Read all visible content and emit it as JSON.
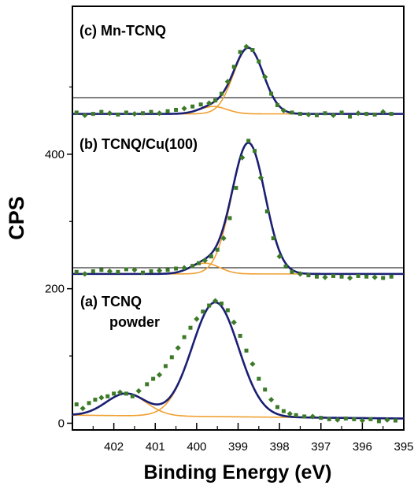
{
  "chart_data": {
    "type": "scatter",
    "xlabel": "Binding Energy (eV)",
    "ylabel": "CPS",
    "xlim": [
      403,
      395
    ],
    "ylim": [
      -10,
      620
    ],
    "x_reversed": true,
    "x_ticks": [
      "402",
      "401",
      "400",
      "399",
      "398",
      "397",
      "396",
      "395"
    ],
    "y_ticks": [
      "0",
      "200",
      "400"
    ],
    "colors": {
      "data": "#3c7a28",
      "fit": "#1a1f73",
      "component": "#f0a030",
      "axis": "#000000"
    },
    "panels": [
      {
        "label": "(a) TCNQ",
        "label_line2": "powder",
        "baseline": [
          12,
          7
        ],
        "peaks": [
          {
            "center": 399.55,
            "height": 170,
            "width": 0.56
          },
          {
            "center": 401.7,
            "height": 33,
            "width": 0.48
          }
        ],
        "points": [
          [
            402.9,
            28
          ],
          [
            402.75,
            22
          ],
          [
            402.6,
            30
          ],
          [
            402.45,
            35
          ],
          [
            402.3,
            38
          ],
          [
            402.15,
            40
          ],
          [
            402.0,
            44
          ],
          [
            401.85,
            46
          ],
          [
            401.7,
            44
          ],
          [
            401.55,
            40
          ],
          [
            401.4,
            48
          ],
          [
            401.2,
            58
          ],
          [
            401.05,
            66
          ],
          [
            400.9,
            72
          ],
          [
            400.75,
            85
          ],
          [
            400.6,
            98
          ],
          [
            400.45,
            112
          ],
          [
            400.3,
            128
          ],
          [
            400.15,
            142
          ],
          [
            400.0,
            155
          ],
          [
            399.85,
            166
          ],
          [
            399.7,
            175
          ],
          [
            399.55,
            182
          ],
          [
            399.4,
            178
          ],
          [
            399.25,
            168
          ],
          [
            399.1,
            150
          ],
          [
            398.95,
            130
          ],
          [
            398.8,
            108
          ],
          [
            398.65,
            88
          ],
          [
            398.5,
            66
          ],
          [
            398.35,
            50
          ],
          [
            398.2,
            35
          ],
          [
            398.05,
            24
          ],
          [
            397.9,
            18
          ],
          [
            397.75,
            14
          ],
          [
            397.6,
            12
          ],
          [
            397.4,
            10
          ],
          [
            397.2,
            10
          ],
          [
            397.0,
            8
          ],
          [
            396.8,
            6
          ],
          [
            396.6,
            5
          ],
          [
            396.4,
            7
          ],
          [
            396.2,
            6
          ],
          [
            396.0,
            4
          ],
          [
            395.8,
            6
          ],
          [
            395.6,
            3
          ],
          [
            395.4,
            5
          ],
          [
            395.2,
            4
          ]
        ]
      },
      {
        "label": "(b) TCNQ/Cu(100)",
        "baseline": [
          222,
          222
        ],
        "peaks": [
          {
            "center": 398.75,
            "height": 195,
            "width": 0.4
          },
          {
            "center": 399.8,
            "height": 16,
            "width": 0.35
          }
        ],
        "points": [
          [
            402.9,
            225
          ],
          [
            402.7,
            222
          ],
          [
            402.5,
            226
          ],
          [
            402.3,
            228
          ],
          [
            402.1,
            226
          ],
          [
            401.9,
            225
          ],
          [
            401.7,
            229
          ],
          [
            401.5,
            228
          ],
          [
            401.3,
            224
          ],
          [
            401.1,
            226
          ],
          [
            400.9,
            227
          ],
          [
            400.7,
            228
          ],
          [
            400.5,
            230
          ],
          [
            400.3,
            231
          ],
          [
            400.1,
            234
          ],
          [
            399.95,
            238
          ],
          [
            399.8,
            242
          ],
          [
            399.65,
            248
          ],
          [
            399.5,
            258
          ],
          [
            399.35,
            275
          ],
          [
            399.2,
            305
          ],
          [
            399.05,
            350
          ],
          [
            398.9,
            395
          ],
          [
            398.75,
            420
          ],
          [
            398.6,
            405
          ],
          [
            398.45,
            365
          ],
          [
            398.3,
            315
          ],
          [
            398.15,
            275
          ],
          [
            398.0,
            248
          ],
          [
            397.85,
            233
          ],
          [
            397.7,
            225
          ],
          [
            397.5,
            222
          ],
          [
            397.3,
            220
          ],
          [
            397.1,
            218
          ],
          [
            396.9,
            217
          ],
          [
            396.7,
            219
          ],
          [
            396.5,
            218
          ],
          [
            396.3,
            216
          ],
          [
            396.1,
            219
          ],
          [
            395.9,
            218
          ],
          [
            395.7,
            217
          ],
          [
            395.5,
            216
          ],
          [
            395.3,
            218
          ]
        ]
      },
      {
        "label": "(c) Mn-TCNQ",
        "baseline": [
          460,
          460
        ],
        "peaks": [
          {
            "center": 398.75,
            "height": 98,
            "width": 0.36
          },
          {
            "center": 399.6,
            "height": 11,
            "width": 0.33
          }
        ],
        "points": [
          [
            402.9,
            462
          ],
          [
            402.7,
            458
          ],
          [
            402.5,
            460
          ],
          [
            402.3,
            463
          ],
          [
            402.1,
            461
          ],
          [
            401.9,
            459
          ],
          [
            401.7,
            462
          ],
          [
            401.5,
            460
          ],
          [
            401.3,
            461
          ],
          [
            401.1,
            463
          ],
          [
            400.9,
            461
          ],
          [
            400.7,
            464
          ],
          [
            400.5,
            466
          ],
          [
            400.3,
            468
          ],
          [
            400.1,
            471
          ],
          [
            399.9,
            474
          ],
          [
            399.7,
            476
          ],
          [
            399.55,
            480
          ],
          [
            399.4,
            490
          ],
          [
            399.25,
            508
          ],
          [
            399.1,
            530
          ],
          [
            398.95,
            552
          ],
          [
            398.8,
            560
          ],
          [
            398.65,
            555
          ],
          [
            398.5,
            538
          ],
          [
            398.35,
            515
          ],
          [
            398.2,
            490
          ],
          [
            398.05,
            473
          ],
          [
            397.9,
            465
          ],
          [
            397.7,
            462
          ],
          [
            397.5,
            460
          ],
          [
            397.3,
            459
          ],
          [
            397.1,
            458
          ],
          [
            396.9,
            461
          ],
          [
            396.7,
            458
          ],
          [
            396.5,
            462
          ],
          [
            396.3,
            456
          ],
          [
            396.1,
            461
          ],
          [
            395.9,
            460
          ],
          [
            395.7,
            459
          ],
          [
            395.5,
            463
          ],
          [
            395.3,
            460
          ]
        ]
      }
    ]
  }
}
